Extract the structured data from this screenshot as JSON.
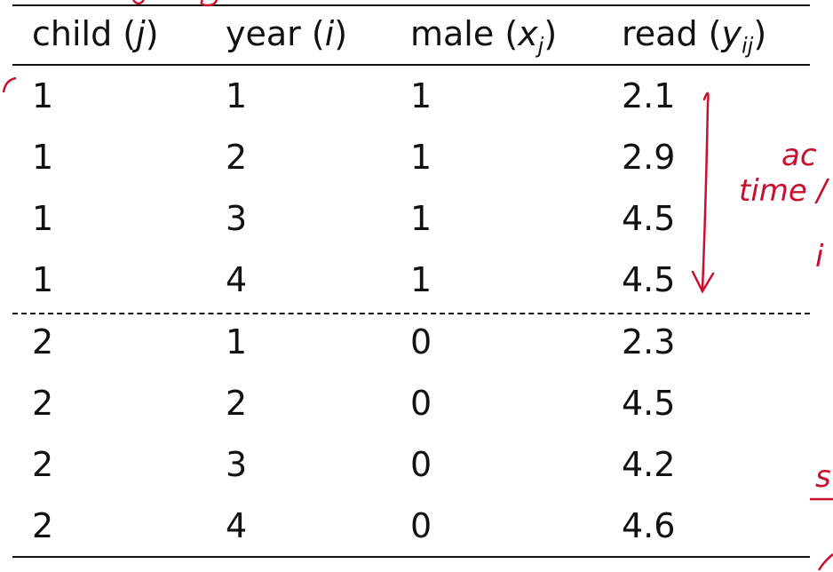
{
  "table": {
    "headers": [
      {
        "name": "child",
        "symbol": "j",
        "subscript": ""
      },
      {
        "name": "year",
        "symbol": "i",
        "subscript": ""
      },
      {
        "name": "male",
        "symbol": "x",
        "subscript": "j"
      },
      {
        "name": "read",
        "symbol": "y",
        "subscript": "ij"
      }
    ],
    "rows": [
      [
        "1",
        "1",
        "1",
        "2.1"
      ],
      [
        "1",
        "2",
        "1",
        "2.9"
      ],
      [
        "1",
        "3",
        "1",
        "4.5"
      ],
      [
        "1",
        "4",
        "1",
        "4.5"
      ],
      [
        "2",
        "1",
        "0",
        "2.3"
      ],
      [
        "2",
        "2",
        "0",
        "4.5"
      ],
      [
        "2",
        "3",
        "0",
        "4.2"
      ],
      [
        "2",
        "4",
        "0",
        "4.6"
      ]
    ]
  },
  "annotations": {
    "ink_color": "#c8102e",
    "handwriting": [
      "ac",
      "time /",
      "i",
      "s"
    ]
  }
}
